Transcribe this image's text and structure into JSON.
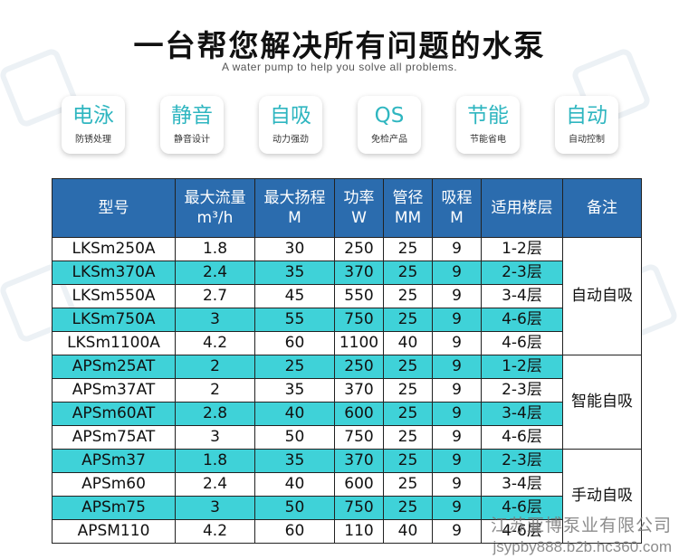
{
  "title": "一台帮您解决所有问题的水泵",
  "subtitle": "A water pump to help you solve all problems.",
  "accent_color": "#2fb6c0",
  "header_color": "#2b6cae",
  "row_highlight_color": "#3fd2d8",
  "features": [
    {
      "main": "电泳",
      "sub": "防锈处理"
    },
    {
      "main": "静音",
      "sub": "静音设计"
    },
    {
      "main": "自吸",
      "sub": "动力强劲"
    },
    {
      "main": "QS",
      "sub": "免检产品"
    },
    {
      "main": "节能",
      "sub": "节能省电"
    },
    {
      "main": "自动",
      "sub": "自动控制"
    }
  ],
  "table": {
    "headers": [
      {
        "line1": "型号",
        "line2": ""
      },
      {
        "line1": "最大流量",
        "line2": "m³/h"
      },
      {
        "line1": "最大扬程",
        "line2": "M"
      },
      {
        "line1": "功率",
        "line2": "W"
      },
      {
        "line1": "管径",
        "line2": "MM"
      },
      {
        "line1": "吸程",
        "line2": "M"
      },
      {
        "line1": "适用楼层",
        "line2": ""
      },
      {
        "line1": "备注",
        "line2": ""
      }
    ],
    "rows": [
      {
        "model": "LKSm250A",
        "flow": "1.8",
        "head": "30",
        "power": "250",
        "pipe": "25",
        "suction": "9",
        "floors": "1-2层"
      },
      {
        "model": "LKSm370A",
        "flow": "2.4",
        "head": "35",
        "power": "370",
        "pipe": "25",
        "suction": "9",
        "floors": "2-3层"
      },
      {
        "model": "LKSm550A",
        "flow": "2.7",
        "head": "45",
        "power": "550",
        "pipe": "25",
        "suction": "9",
        "floors": "3-4层"
      },
      {
        "model": "LKSm750A",
        "flow": "3",
        "head": "55",
        "power": "750",
        "pipe": "25",
        "suction": "9",
        "floors": "4-6层"
      },
      {
        "model": "LKSm1100A",
        "flow": "4.2",
        "head": "60",
        "power": "1100",
        "pipe": "40",
        "suction": "9",
        "floors": "4-6层"
      },
      {
        "model": "APSm25AT",
        "flow": "2",
        "head": "25",
        "power": "250",
        "pipe": "25",
        "suction": "9",
        "floors": "1-2层"
      },
      {
        "model": "APSm37AT",
        "flow": "2",
        "head": "35",
        "power": "370",
        "pipe": "25",
        "suction": "9",
        "floors": "2-3层"
      },
      {
        "model": "APSm60AT",
        "flow": "2.8",
        "head": "40",
        "power": "600",
        "pipe": "25",
        "suction": "9",
        "floors": "3-4层"
      },
      {
        "model": "APSm75AT",
        "flow": "3",
        "head": "50",
        "power": "750",
        "pipe": "25",
        "suction": "9",
        "floors": "4-6层"
      },
      {
        "model": "APSm37",
        "flow": "1.8",
        "head": "35",
        "power": "370",
        "pipe": "25",
        "suction": "9",
        "floors": "2-3层"
      },
      {
        "model": "APSm60",
        "flow": "2.4",
        "head": "40",
        "power": "600",
        "pipe": "25",
        "suction": "9",
        "floors": "3-4层"
      },
      {
        "model": "APSm75",
        "flow": "3",
        "head": "50",
        "power": "750",
        "pipe": "25",
        "suction": "9",
        "floors": "4-6层"
      },
      {
        "model": "APSM110",
        "flow": "4.2",
        "head": "60",
        "power": "110",
        "pipe": "40",
        "suction": "9",
        "floors": "4-6层"
      }
    ],
    "notes": [
      {
        "text": "自动自吸"
      },
      {
        "text": "智能自吸"
      },
      {
        "text": "手动自吸"
      }
    ]
  },
  "footer": {
    "company": "江苏亚博泵业有限公司",
    "url": "jsypby888.b2b.hc360.com"
  }
}
